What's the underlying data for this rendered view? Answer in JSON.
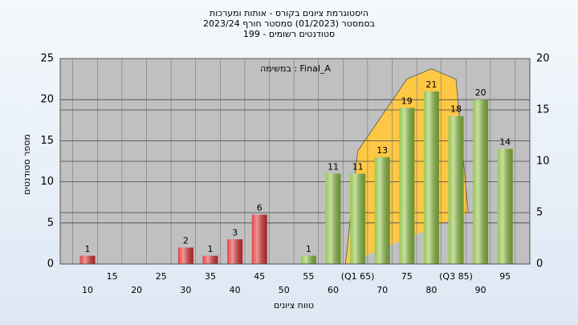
{
  "chart_data": {
    "type": "bar",
    "title": "היסטוגרמת ציונים בקורס - אותות ומערכות",
    "subtitle": "בסמסטר (01/2023) סמסטר חורף 2023/24",
    "subtitle2": "סטודנטים רשומים - 199",
    "annotation": "במשימה : Final_A",
    "y_label": "מספר סטודנטים",
    "x_label": "טווח ציונים",
    "categories": [
      "10",
      "15",
      "20",
      "25",
      "30",
      "35",
      "40",
      "45",
      "50",
      "55",
      "60",
      "(Q1 65)",
      "70",
      "75",
      "80",
      "(Q3 85)",
      "90",
      "95"
    ],
    "values": [
      1,
      0,
      0,
      0,
      2,
      1,
      3,
      6,
      0,
      1,
      11,
      11,
      13,
      19,
      21,
      18,
      20,
      14
    ],
    "colors": [
      "#e03030",
      "#e03030",
      "#e03030",
      "#e03030",
      "#e03030",
      "#e03030",
      "#e03030",
      "#e03030",
      "#e03030",
      "#8dc040",
      "#8dc040",
      "#8dc040",
      "#8dc040",
      "#8dc040",
      "#8dc040",
      "#8dc040",
      "#8dc040",
      "#8dc040"
    ],
    "ylim": [
      0,
      25
    ],
    "yticks": [
      0,
      5,
      10,
      15,
      20,
      25
    ],
    "y2lim": [
      0,
      20
    ],
    "y2ticks": [
      0,
      5,
      10,
      15,
      20
    ],
    "area": {
      "color": "#ffc844",
      "axis": "y2",
      "x": [
        62.5,
        65,
        70,
        75,
        80,
        85,
        87.5
      ],
      "values": [
        0,
        11,
        14.5,
        18,
        19,
        18,
        5
      ]
    },
    "grid": true
  }
}
